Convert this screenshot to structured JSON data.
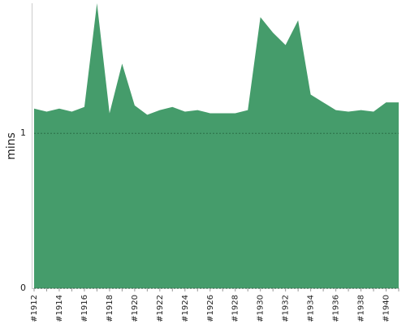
{
  "chart_data": {
    "type": "area",
    "y_label": "mins",
    "categories": [
      "#1912",
      null,
      "#1914",
      null,
      "#1916",
      null,
      "#1918",
      null,
      "#1920",
      null,
      "#1922",
      null,
      "#1924",
      null,
      "#1926",
      null,
      "#1928",
      null,
      "#1930",
      null,
      "#1932",
      null,
      "#1934",
      null,
      "#1936",
      null,
      "#1938",
      null,
      "#1940",
      null
    ],
    "values": [
      1.16,
      1.14,
      1.16,
      1.14,
      1.17,
      1.84,
      1.13,
      1.45,
      1.18,
      1.12,
      1.15,
      1.17,
      1.14,
      1.15,
      1.13,
      1.13,
      1.13,
      1.15,
      1.75,
      1.65,
      1.57,
      1.73,
      1.25,
      1.2,
      1.15,
      1.14,
      1.15,
      1.14,
      1.2,
      1.2
    ],
    "color": "#459c6b",
    "ylim": [
      0,
      1.84
    ],
    "yticks": [
      0,
      1
    ],
    "grid": true
  }
}
